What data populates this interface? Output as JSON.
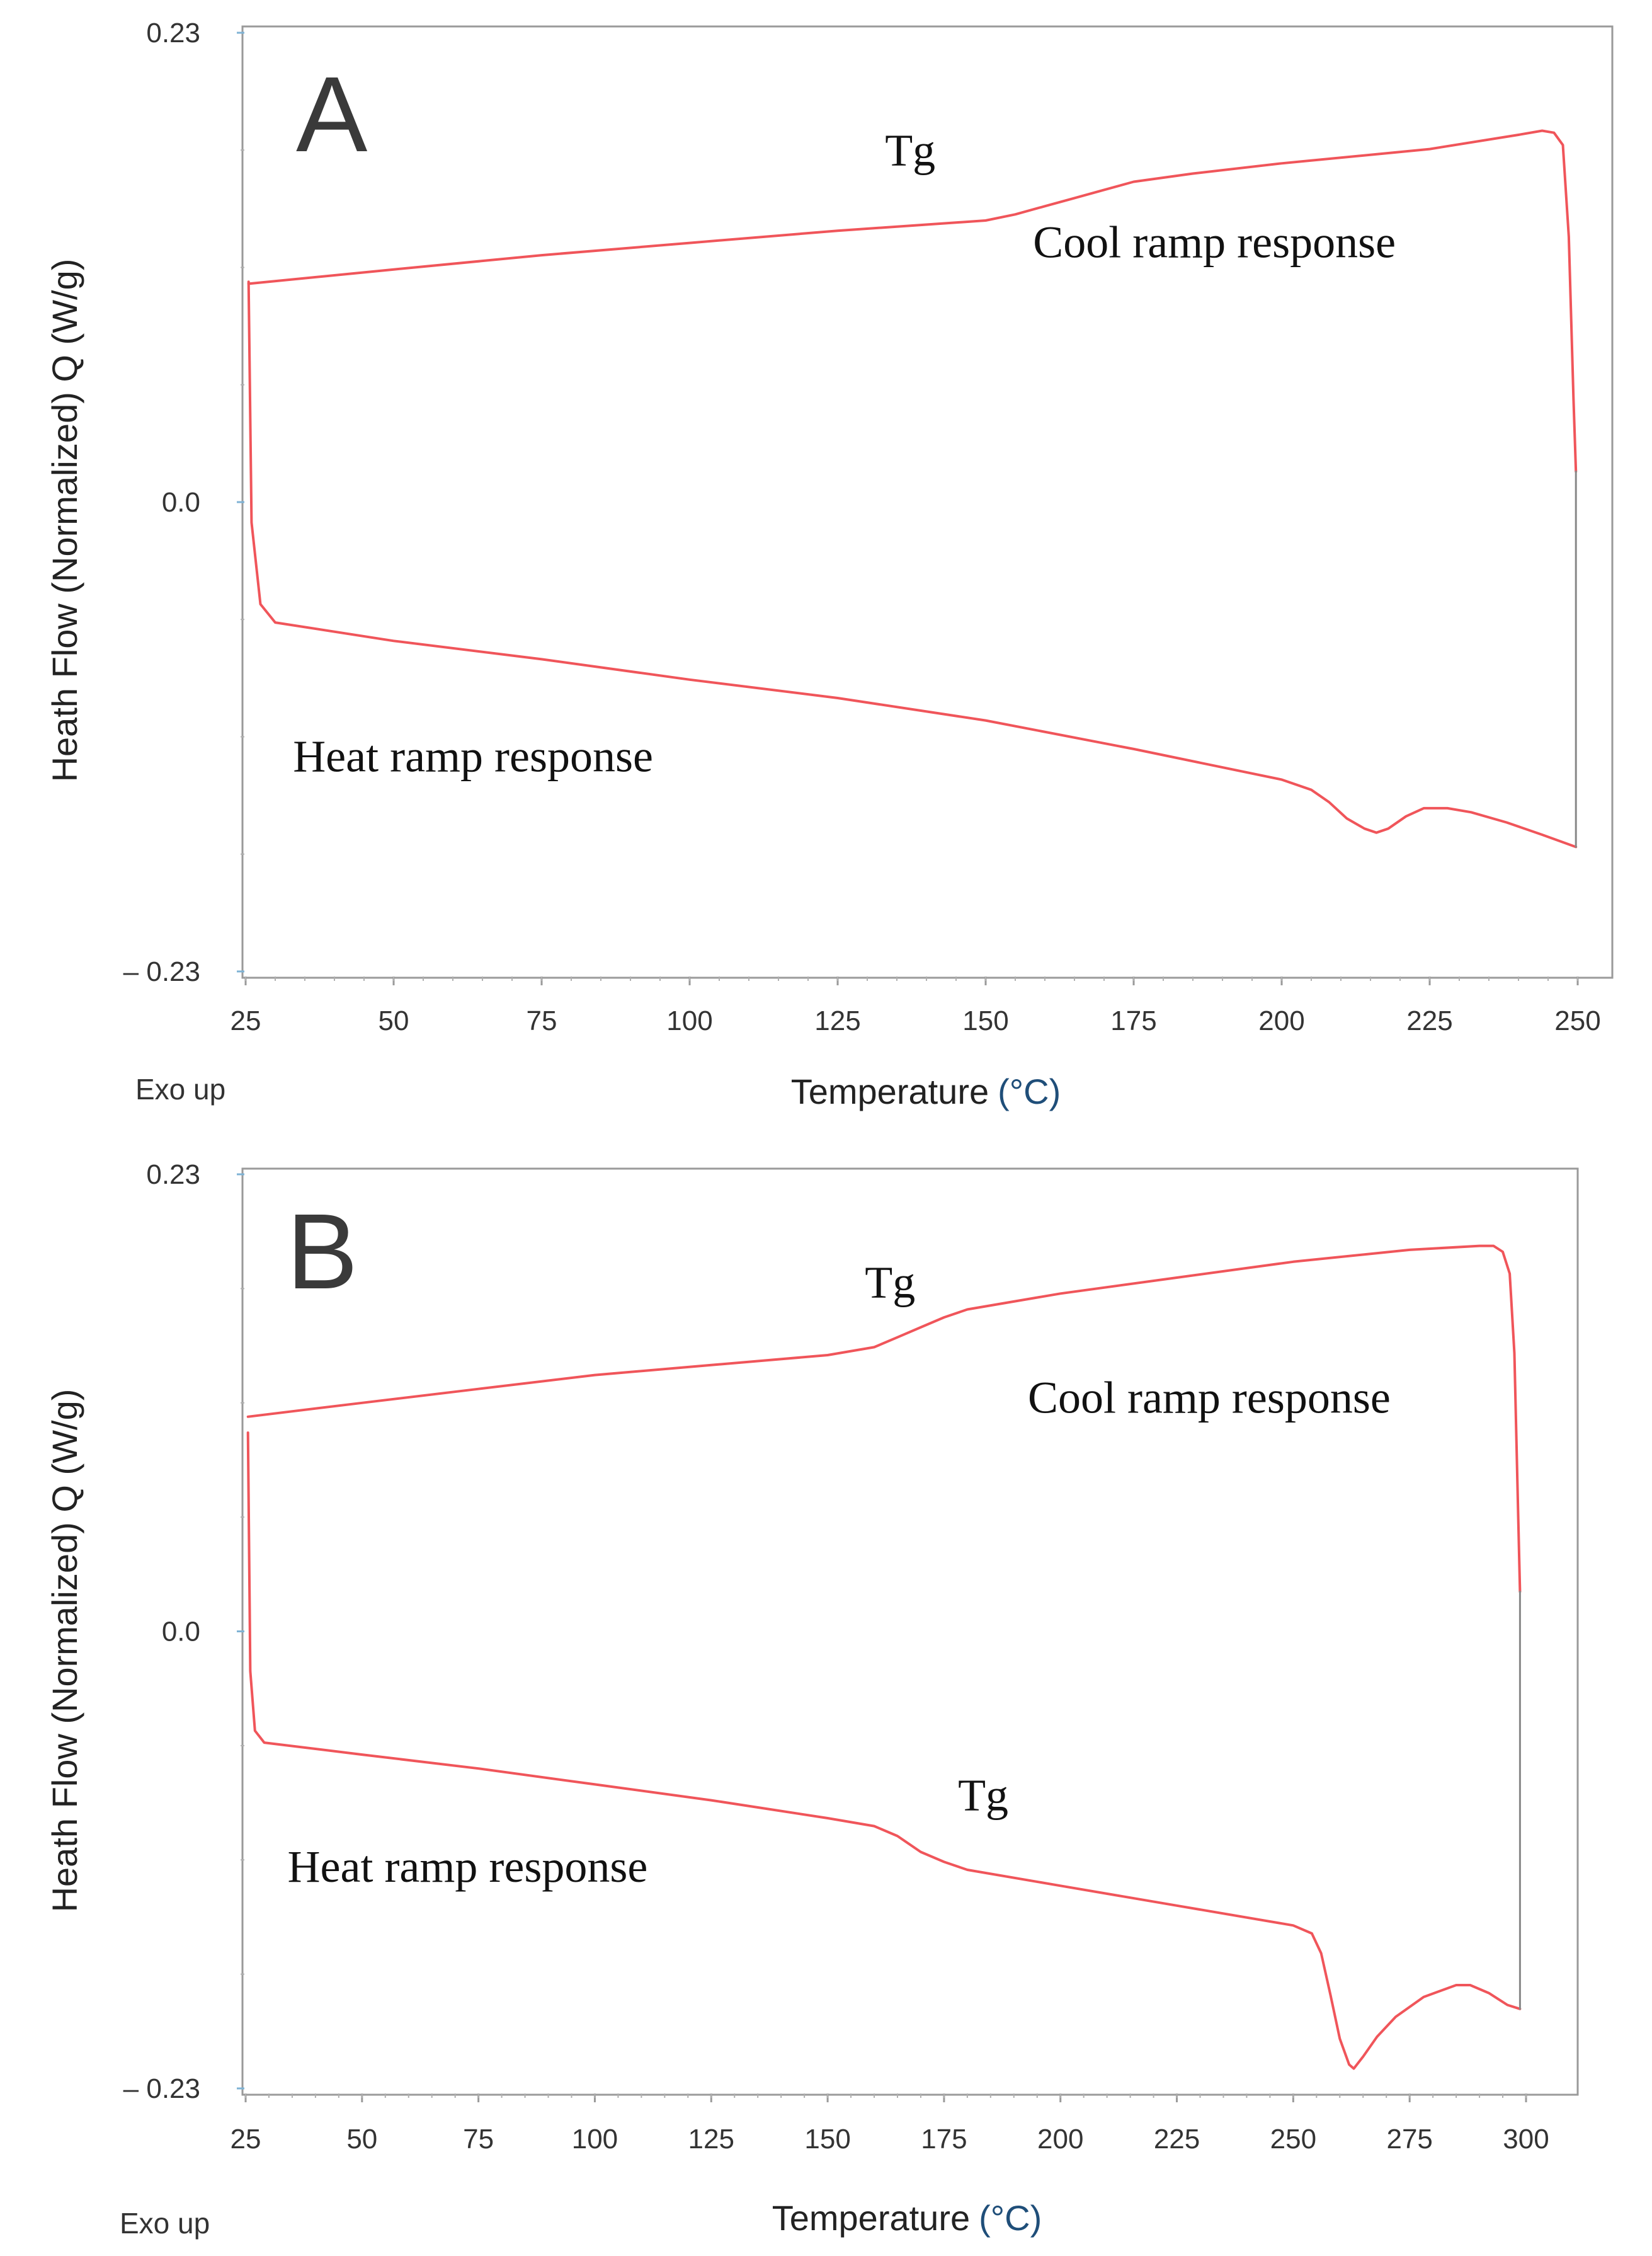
{
  "chart_data": [
    {
      "type": "line",
      "panel_label": "A",
      "xlabel": "Temperature",
      "xunit": "(°C)",
      "ylabel": "Heath Flow (Normalized) Q (W/g)",
      "xlim": [
        25,
        250
      ],
      "ylim": [
        -0.23,
        0.23
      ],
      "x_ticks": [
        "25",
        "50",
        "75",
        "100",
        "125",
        "150",
        "175",
        "200",
        "225",
        "250"
      ],
      "y_ticks": [
        "0.23",
        "0.0",
        "– 0.23"
      ],
      "y_tick_values": [
        0.23,
        0.0,
        -0.23
      ],
      "corner_note": "Exo up",
      "grid": false,
      "line_color": "#f0555a",
      "annotations": [
        {
          "text": "Tg",
          "x": 133,
          "y": 0.165
        },
        {
          "text": "Cool ramp response",
          "x": 158,
          "y": 0.12
        },
        {
          "text": "Heat ramp response",
          "x": 33,
          "y": -0.132
        }
      ],
      "series": [
        {
          "x": [
            25.5,
            26.0,
            27.5,
            30.0,
            50,
            75,
            100,
            125,
            150,
            175,
            200,
            205,
            208,
            211,
            214,
            216,
            218,
            221,
            224,
            228,
            232,
            238,
            244,
            249.7
          ],
          "y": [
            0.108,
            -0.01,
            -0.05,
            -0.059,
            -0.068,
            -0.077,
            -0.087,
            -0.096,
            -0.107,
            -0.121,
            -0.136,
            -0.141,
            -0.147,
            -0.155,
            -0.16,
            -0.162,
            -0.16,
            -0.154,
            -0.15,
            -0.15,
            -0.152,
            -0.157,
            -0.163,
            -0.169
          ]
        },
        {
          "x": [
            25.5,
            50,
            75,
            100,
            125,
            140,
            150,
            155,
            160,
            165,
            170,
            175,
            185,
            200,
            225,
            240,
            244,
            246,
            247.5,
            248.5,
            249.3,
            249.7
          ],
          "y": [
            0.107,
            0.114,
            0.121,
            0.127,
            0.133,
            0.136,
            0.138,
            0.141,
            0.145,
            0.149,
            0.153,
            0.157,
            0.161,
            0.166,
            0.173,
            0.18,
            0.182,
            0.181,
            0.175,
            0.13,
            0.05,
            0.015
          ]
        },
        {
          "x": [
            249.7,
            249.7
          ],
          "y": [
            0.015,
            -0.169
          ]
        }
      ]
    },
    {
      "type": "line",
      "panel_label": "B",
      "xlabel": "Temperature",
      "xunit": "(°C)",
      "ylabel": "Heath Flow (Normalized) Q (W/g)",
      "xlim": [
        25,
        300
      ],
      "ylim": [
        -0.23,
        0.23
      ],
      "x_ticks": [
        "25",
        "50",
        "75",
        "100",
        "125",
        "150",
        "175",
        "200",
        "225",
        "250",
        "275",
        "300"
      ],
      "y_ticks": [
        "0.23",
        "0.0",
        "– 0.23"
      ],
      "y_tick_values": [
        0.23,
        0.0,
        -0.23
      ],
      "corner_note": "Exo up",
      "grid": false,
      "line_color": "#f0555a",
      "annotations": [
        {
          "text": "Tg",
          "x": 158,
          "y": 0.168
        },
        {
          "text": "Cool ramp response",
          "x": 193,
          "y": 0.11
        },
        {
          "text": "Tg",
          "x": 178,
          "y": -0.09
        },
        {
          "text": "Heat ramp response",
          "x": 34,
          "y": -0.126
        }
      ],
      "series": [
        {
          "x": [
            25.5,
            26.0,
            27.0,
            29.0,
            50,
            75,
            100,
            125,
            150,
            160,
            165,
            170,
            175,
            180,
            200,
            225,
            250,
            254,
            256,
            258,
            260,
            262,
            263,
            265,
            268,
            272,
            278,
            285,
            288,
            292,
            296,
            298.7
          ],
          "y": [
            0.1,
            -0.02,
            -0.05,
            -0.056,
            -0.062,
            -0.069,
            -0.077,
            -0.085,
            -0.094,
            -0.098,
            -0.103,
            -0.111,
            -0.116,
            -0.12,
            -0.128,
            -0.138,
            -0.148,
            -0.152,
            -0.162,
            -0.183,
            -0.205,
            -0.218,
            -0.22,
            -0.214,
            -0.204,
            -0.194,
            -0.184,
            -0.178,
            -0.178,
            -0.182,
            -0.188,
            -0.19
          ]
        },
        {
          "x": [
            25.5,
            50,
            75,
            100,
            125,
            150,
            160,
            165,
            170,
            175,
            180,
            190,
            200,
            225,
            250,
            275,
            290,
            293,
            295,
            296.5,
            297.5,
            298.3,
            298.7
          ],
          "y": [
            0.108,
            0.115,
            0.122,
            0.129,
            0.134,
            0.139,
            0.143,
            0.148,
            0.153,
            0.158,
            0.162,
            0.166,
            0.17,
            0.178,
            0.186,
            0.192,
            0.194,
            0.194,
            0.191,
            0.18,
            0.14,
            0.06,
            0.02
          ]
        },
        {
          "x": [
            298.7,
            298.7
          ],
          "y": [
            0.02,
            -0.19
          ]
        }
      ]
    }
  ]
}
